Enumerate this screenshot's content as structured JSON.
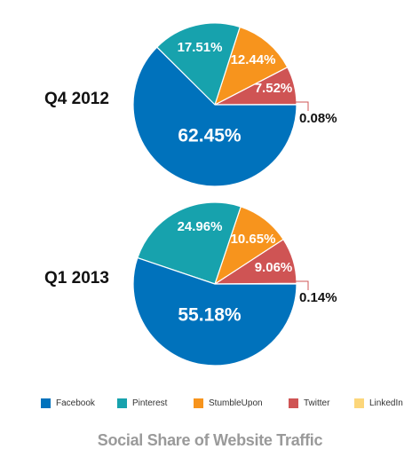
{
  "chart_data": {
    "type": "pie",
    "title": "Social Share of Website Traffic",
    "legend": {
      "placement": "bottom",
      "entries": [
        "Facebook",
        "Pinterest",
        "StumbleUpon",
        "Twitter",
        "LinkedIn"
      ]
    },
    "series_colors": {
      "Facebook": "#0072bc",
      "Pinterest": "#17a2ad",
      "StumbleUpon": "#f7941d",
      "Twitter": "#cf5454",
      "LinkedIn": "#fcd67a"
    },
    "leader_line_color": "#cf5454",
    "charts": [
      {
        "period": "Q4 2012",
        "slices": [
          {
            "name": "Facebook",
            "value": 62.45,
            "label": "62.45%"
          },
          {
            "name": "Pinterest",
            "value": 17.51,
            "label": "17.51%"
          },
          {
            "name": "StumbleUpon",
            "value": 12.44,
            "label": "12.44%"
          },
          {
            "name": "Twitter",
            "value": 7.52,
            "label": "7.52%"
          },
          {
            "name": "LinkedIn",
            "value": 0.08,
            "label": "0.08%"
          }
        ]
      },
      {
        "period": "Q1 2013",
        "slices": [
          {
            "name": "Facebook",
            "value": 55.18,
            "label": "55.18%"
          },
          {
            "name": "Pinterest",
            "value": 24.96,
            "label": "24.96%"
          },
          {
            "name": "StumbleUpon",
            "value": 10.65,
            "label": "10.65%"
          },
          {
            "name": "Twitter",
            "value": 9.06,
            "label": "9.06%"
          },
          {
            "name": "LinkedIn",
            "value": 0.14,
            "label": "0.14%"
          }
        ]
      }
    ]
  },
  "footer": {
    "title": "Social Share of  Website Traffic"
  }
}
